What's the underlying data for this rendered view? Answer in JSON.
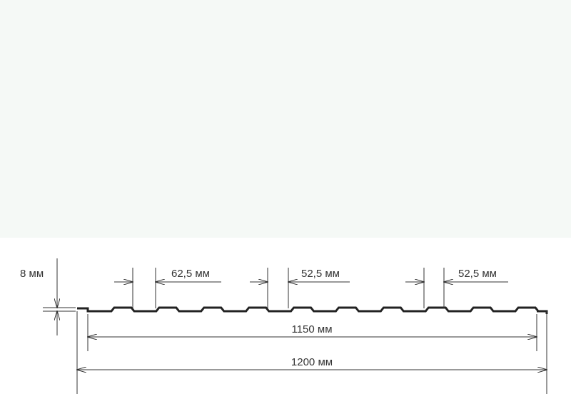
{
  "dimensions": {
    "height": "8 мм",
    "rib_top": "62,5 мм",
    "rib_gap_1": "52,5 мм",
    "rib_gap_2": "52,5 мм",
    "useful_width": "1150 мм",
    "total_width": "1200 мм"
  }
}
